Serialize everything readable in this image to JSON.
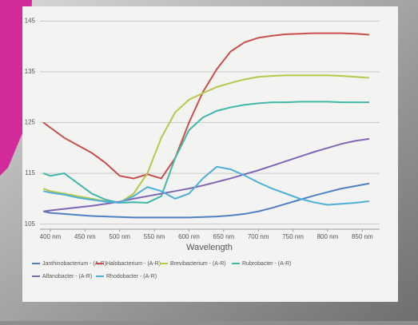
{
  "chart_data": {
    "type": "line",
    "x_label": "Wavelength",
    "x": [
      390,
      400,
      420,
      440,
      460,
      480,
      500,
      520,
      540,
      560,
      580,
      600,
      620,
      640,
      660,
      680,
      700,
      720,
      740,
      760,
      780,
      800,
      820,
      840,
      860
    ],
    "xlim": [
      385,
      875
    ],
    "xticks": [
      {
        "value": 400,
        "label": "400 nm"
      },
      {
        "value": 450,
        "label": "450 nm"
      },
      {
        "value": 500,
        "label": "500 nm"
      },
      {
        "value": 550,
        "label": "550 nm"
      },
      {
        "value": 600,
        "label": "600 nm"
      },
      {
        "value": 650,
        "label": "650 nm"
      },
      {
        "value": 700,
        "label": "700 nm"
      },
      {
        "value": 750,
        "label": "750 nm"
      },
      {
        "value": 800,
        "label": "800 nm"
      },
      {
        "value": 850,
        "label": "850 nm"
      }
    ],
    "ylim": [
      104,
      146
    ],
    "yticks": [
      105,
      115,
      125,
      135,
      145
    ],
    "grid": true,
    "legend": "bottom",
    "series": [
      {
        "name": "Janthinobacterium - (A-R)",
        "color": "#4f7fc4",
        "values": [
          107.5,
          107.2,
          107,
          106.8,
          106.6,
          106.5,
          106.4,
          106.3,
          106.3,
          106.3,
          106.3,
          106.3,
          106.4,
          106.5,
          106.7,
          107,
          107.5,
          108.2,
          109,
          109.8,
          110.6,
          111.3,
          112,
          112.5,
          113
        ]
      },
      {
        "name": "Halobacterium - (A-R)",
        "color": "#c8504c",
        "values": [
          125,
          124,
          122,
          120.5,
          119,
          117,
          114.5,
          114,
          114.8,
          114,
          118,
          125,
          131,
          135.5,
          139,
          140.8,
          141.7,
          142.1,
          142.4,
          142.5,
          142.6,
          142.6,
          142.6,
          142.5,
          142.3
        ]
      },
      {
        "name": "Brevibacterium - (A-R)",
        "color": "#b5c84a",
        "values": [
          112,
          111.5,
          111,
          110.5,
          110,
          109.5,
          109.2,
          111,
          115,
          122,
          127,
          129.5,
          130.8,
          132,
          132.8,
          133.5,
          134,
          134.2,
          134.3,
          134.3,
          134.3,
          134.3,
          134.2,
          134,
          133.8
        ]
      },
      {
        "name": "Rubrobacter - (A-R)",
        "color": "#3fb8a8",
        "values": [
          115,
          114.5,
          115,
          113,
          111,
          109.8,
          109.2,
          109.3,
          109.2,
          110.5,
          118,
          123.5,
          126,
          127.3,
          128,
          128.5,
          128.8,
          129,
          129,
          129.1,
          129.1,
          129.1,
          129,
          129,
          129
        ]
      },
      {
        "name": "Alfanobacter - (A-R)",
        "color": "#8067b5",
        "values": [
          107.5,
          107.7,
          108,
          108.3,
          108.6,
          109,
          109.4,
          110,
          110.5,
          111,
          111.5,
          112,
          112.6,
          113.3,
          114,
          114.8,
          115.6,
          116.5,
          117.4,
          118.3,
          119.2,
          120,
          120.8,
          121.4,
          121.8
        ]
      },
      {
        "name": "Rhodobacter - (A-R)",
        "color": "#4eb0d8",
        "values": [
          111.5,
          111.2,
          110.8,
          110.2,
          109.8,
          109.4,
          109.2,
          110.5,
          112.3,
          111.5,
          110,
          111,
          114,
          116.3,
          115.8,
          114.6,
          113.2,
          112,
          111,
          110,
          109.3,
          108.8,
          109,
          109.2,
          109.5
        ]
      }
    ]
  }
}
